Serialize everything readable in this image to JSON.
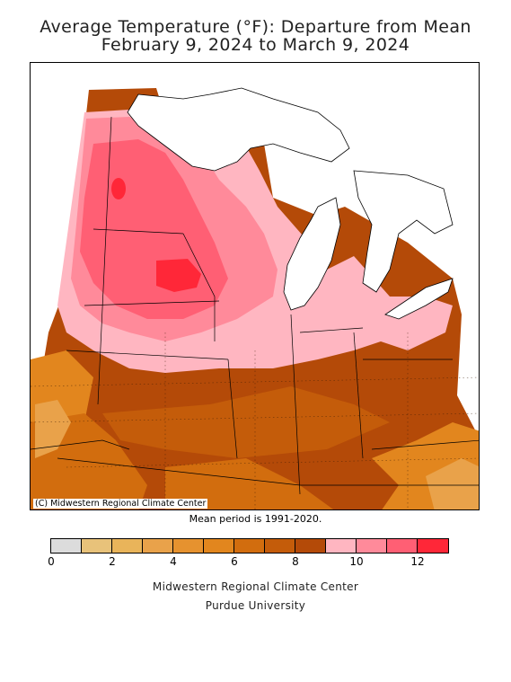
{
  "title": {
    "line1": "Average Temperature (°F): Departure from Mean",
    "line2": "February 9, 2024 to March 9, 2024"
  },
  "map": {
    "credit": "(C) Midwestern Regional Climate Center",
    "mean_period_note": "Mean period is 1991-2020.",
    "water_color": "#ffffff",
    "region_colors": {
      "deep_brown": "#b44a08",
      "brown": "#c45c0a",
      "orange_brown": "#d26d0e",
      "orange": "#e2861e",
      "light_orange": "#e9a24a",
      "light_pink": "#ffb6c1",
      "pink": "#ff8a9a",
      "rose": "#ff5f74",
      "red": "#ff2738"
    }
  },
  "legend": {
    "tick_labels": [
      "0",
      "2",
      "4",
      "6",
      "8",
      "10",
      "12"
    ],
    "bins": [
      {
        "color": "#dcdcdc"
      },
      {
        "color": "#e8c27a"
      },
      {
        "color": "#e9b45a"
      },
      {
        "color": "#e9a24a"
      },
      {
        "color": "#e6922f"
      },
      {
        "color": "#e2861e"
      },
      {
        "color": "#d26d0e"
      },
      {
        "color": "#c45c0a"
      },
      {
        "color": "#b44a08"
      },
      {
        "color": "#ffb6c1"
      },
      {
        "color": "#ff8a9a"
      },
      {
        "color": "#ff5f74"
      },
      {
        "color": "#ff2738"
      }
    ]
  },
  "footer": {
    "org": "Midwestern Regional Climate Center",
    "university": "Purdue University"
  }
}
